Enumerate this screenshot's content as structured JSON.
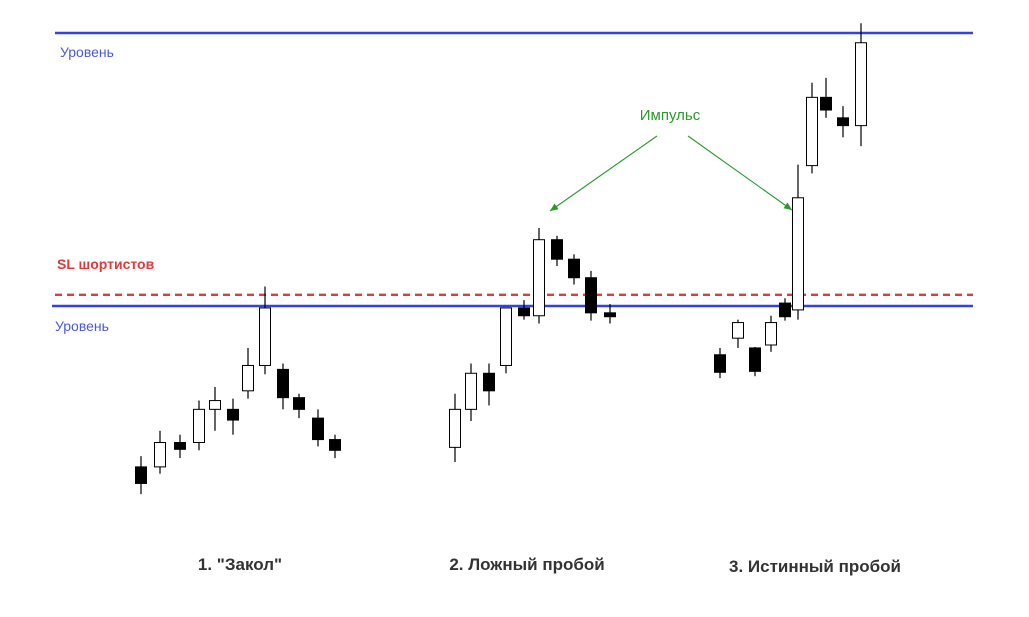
{
  "chart_data": {
    "type": "candlestick",
    "title": "",
    "levels": [
      {
        "label": "Уровень",
        "price": 100,
        "color": "#3344dd",
        "style": "solid"
      },
      {
        "label": "Уровень",
        "price": 72,
        "color": "#3344dd",
        "style": "solid"
      },
      {
        "label": "SL шортистов",
        "price": 73.15,
        "color": "#e03a3a",
        "style": "dashed"
      }
    ],
    "annotation": {
      "text": "Импульс",
      "color": "#2a9a2a"
    },
    "captions": [
      "1. \"Закол\"",
      "2. Ложный пробой",
      "3. Истинный пробой"
    ],
    "colors": {
      "bull": "#ffffff",
      "bear": "#000000",
      "wick": "#000000"
    },
    "candles": [
      {
        "o": 55.5,
        "h": 56.6,
        "l": 52.7,
        "c": 53.8
      },
      {
        "o": 55.5,
        "h": 59.2,
        "l": 54.8,
        "c": 58.0
      },
      {
        "o": 58.0,
        "h": 58.8,
        "l": 56.4,
        "c": 57.3
      },
      {
        "o": 58.0,
        "h": 62.3,
        "l": 57.2,
        "c": 61.4
      },
      {
        "o": 61.4,
        "h": 63.7,
        "l": 59.2,
        "c": 62.3
      },
      {
        "o": 61.4,
        "h": 62.5,
        "l": 58.8,
        "c": 60.3
      },
      {
        "o": 63.3,
        "h": 67.7,
        "l": 62.5,
        "c": 65.9
      },
      {
        "o": 65.9,
        "h": 74.0,
        "l": 65.0,
        "c": 71.8
      },
      {
        "o": 65.5,
        "h": 66.1,
        "l": 61.4,
        "c": 62.6
      },
      {
        "o": 62.6,
        "h": 63.0,
        "l": 60.5,
        "c": 61.4
      },
      {
        "o": 60.5,
        "h": 61.4,
        "l": 57.6,
        "c": 58.3
      },
      {
        "o": 58.3,
        "h": 58.8,
        "l": 56.4,
        "c": 57.2
      },
      {
        "o": 57.5,
        "h": 63.0,
        "l": 56.0,
        "c": 61.4
      },
      {
        "o": 61.4,
        "h": 66.1,
        "l": 60.2,
        "c": 65.1
      },
      {
        "o": 65.1,
        "h": 66.1,
        "l": 61.8,
        "c": 63.3
      },
      {
        "o": 65.9,
        "h": 71.8,
        "l": 65.1,
        "c": 71.8
      },
      {
        "o": 71.8,
        "h": 72.6,
        "l": 70.6,
        "c": 71.0
      },
      {
        "o": 71.0,
        "h": 80.0,
        "l": 70.2,
        "c": 78.8
      },
      {
        "o": 78.8,
        "h": 79.2,
        "l": 76.1,
        "c": 76.8
      },
      {
        "o": 76.8,
        "h": 77.3,
        "l": 74.2,
        "c": 74.9
      },
      {
        "o": 74.9,
        "h": 75.6,
        "l": 70.5,
        "c": 71.3
      },
      {
        "o": 71.3,
        "h": 72.2,
        "l": 70.2,
        "c": 70.9
      },
      {
        "o": 67.0,
        "h": 67.7,
        "l": 64.6,
        "c": 65.2
      },
      {
        "o": 68.7,
        "h": 70.6,
        "l": 67.7,
        "c": 70.3
      },
      {
        "o": 67.7,
        "h": 67.8,
        "l": 64.8,
        "c": 65.3
      },
      {
        "o": 68.0,
        "h": 71.0,
        "l": 67.3,
        "c": 70.3
      },
      {
        "o": 72.3,
        "h": 72.8,
        "l": 70.5,
        "c": 70.9
      },
      {
        "o": 71.6,
        "h": 86.5,
        "l": 70.6,
        "c": 83.1
      },
      {
        "o": 86.4,
        "h": 94.9,
        "l": 85.6,
        "c": 93.4
      },
      {
        "o": 93.4,
        "h": 95.4,
        "l": 91.3,
        "c": 92.1
      },
      {
        "o": 91.3,
        "h": 92.5,
        "l": 89.3,
        "c": 90.5
      },
      {
        "o": 90.5,
        "h": 101.0,
        "l": 88.4,
        "c": 99.0
      }
    ]
  }
}
